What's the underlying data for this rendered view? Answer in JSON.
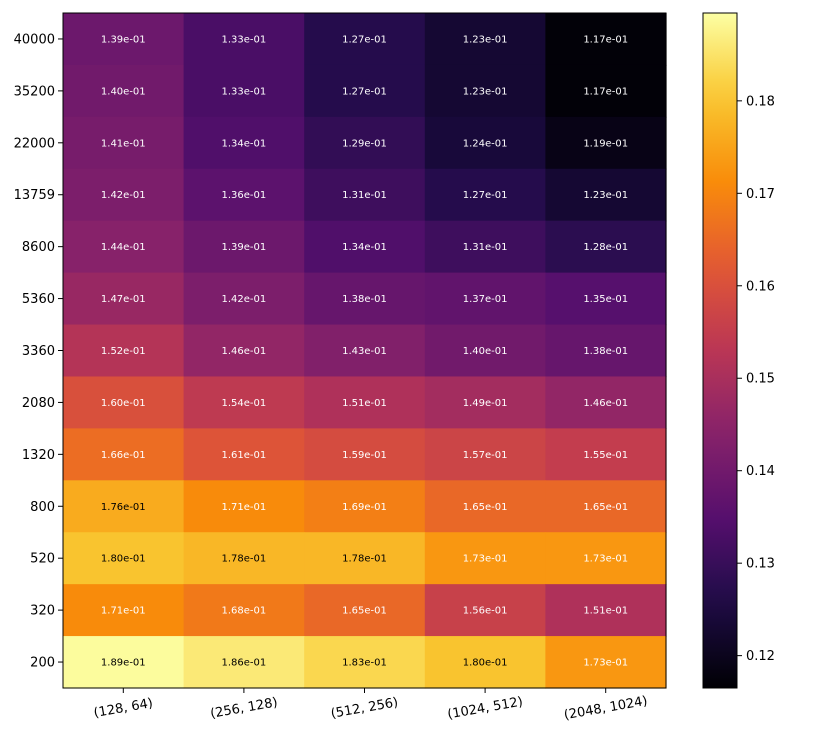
{
  "chart_data": {
    "type": "heatmap",
    "title": "",
    "xlabel": "",
    "ylabel": "",
    "colormap": "inferno",
    "x_categories": [
      "(128, 64)",
      "(256, 128)",
      "(512, 256)",
      "(1024, 512)",
      "(2048, 1024)"
    ],
    "y_categories": [
      "40000",
      "35200",
      "22000",
      "13759",
      "8600",
      "5360",
      "3360",
      "2080",
      "1320",
      "800",
      "520",
      "320",
      "200"
    ],
    "values": [
      [
        0.139,
        0.133,
        0.127,
        0.123,
        0.117
      ],
      [
        0.14,
        0.133,
        0.127,
        0.123,
        0.117
      ],
      [
        0.141,
        0.134,
        0.129,
        0.124,
        0.119
      ],
      [
        0.142,
        0.136,
        0.131,
        0.127,
        0.123
      ],
      [
        0.144,
        0.139,
        0.134,
        0.131,
        0.128
      ],
      [
        0.147,
        0.142,
        0.138,
        0.137,
        0.135
      ],
      [
        0.152,
        0.146,
        0.143,
        0.14,
        0.138
      ],
      [
        0.16,
        0.154,
        0.151,
        0.149,
        0.146
      ],
      [
        0.166,
        0.161,
        0.159,
        0.157,
        0.155
      ],
      [
        0.176,
        0.171,
        0.169,
        0.165,
        0.165
      ],
      [
        0.18,
        0.178,
        0.178,
        0.173,
        0.173
      ],
      [
        0.171,
        0.168,
        0.165,
        0.156,
        0.151
      ],
      [
        0.189,
        0.186,
        0.183,
        0.18,
        0.173
      ]
    ],
    "cell_labels": [
      [
        "1.39e-01",
        "1.33e-01",
        "1.27e-01",
        "1.23e-01",
        "1.17e-01"
      ],
      [
        "1.40e-01",
        "1.33e-01",
        "1.27e-01",
        "1.23e-01",
        "1.17e-01"
      ],
      [
        "1.41e-01",
        "1.34e-01",
        "1.29e-01",
        "1.24e-01",
        "1.19e-01"
      ],
      [
        "1.42e-01",
        "1.36e-01",
        "1.31e-01",
        "1.27e-01",
        "1.23e-01"
      ],
      [
        "1.44e-01",
        "1.39e-01",
        "1.34e-01",
        "1.31e-01",
        "1.28e-01"
      ],
      [
        "1.47e-01",
        "1.42e-01",
        "1.38e-01",
        "1.37e-01",
        "1.35e-01"
      ],
      [
        "1.52e-01",
        "1.46e-01",
        "1.43e-01",
        "1.40e-01",
        "1.38e-01"
      ],
      [
        "1.60e-01",
        "1.54e-01",
        "1.51e-01",
        "1.49e-01",
        "1.46e-01"
      ],
      [
        "1.66e-01",
        "1.61e-01",
        "1.59e-01",
        "1.57e-01",
        "1.55e-01"
      ],
      [
        "1.76e-01",
        "1.71e-01",
        "1.69e-01",
        "1.65e-01",
        "1.65e-01"
      ],
      [
        "1.80e-01",
        "1.78e-01",
        "1.78e-01",
        "1.73e-01",
        "1.73e-01"
      ],
      [
        "1.71e-01",
        "1.68e-01",
        "1.65e-01",
        "1.56e-01",
        "1.51e-01"
      ],
      [
        "1.89e-01",
        "1.86e-01",
        "1.83e-01",
        "1.80e-01",
        "1.73e-01"
      ]
    ],
    "color_range": [
      0.1165,
      0.1895
    ],
    "colorbar_ticks": [
      "0.12",
      "0.13",
      "0.14",
      "0.15",
      "0.16",
      "0.17",
      "0.18"
    ],
    "grid": false,
    "legend": "colorbar-right"
  }
}
